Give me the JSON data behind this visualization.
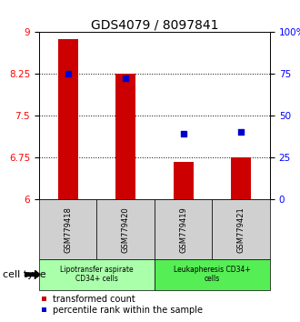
{
  "title": "GDS4079 / 8097841",
  "samples": [
    "GSM779418",
    "GSM779420",
    "GSM779419",
    "GSM779421"
  ],
  "red_values": [
    8.87,
    8.26,
    6.67,
    6.76
  ],
  "blue_values": [
    8.25,
    8.17,
    7.18,
    7.22
  ],
  "ylim_left": [
    6,
    9
  ],
  "ylim_right": [
    0,
    100
  ],
  "yticks_left": [
    6,
    6.75,
    7.5,
    8.25,
    9
  ],
  "yticks_right": [
    0,
    25,
    50,
    75,
    100
  ],
  "ytick_labels_right": [
    "0",
    "25",
    "50",
    "75",
    "100%"
  ],
  "dotted_lines": [
    6.75,
    7.5,
    8.25
  ],
  "groups": [
    {
      "label": "Lipotransfer aspirate\nCD34+ cells",
      "indices": [
        0,
        1
      ],
      "color": "#aaffaa"
    },
    {
      "label": "Leukapheresis CD34+\ncells",
      "indices": [
        2,
        3
      ],
      "color": "#55ee55"
    }
  ],
  "bar_color": "#cc0000",
  "dot_color": "#0000cc",
  "bar_width": 0.35,
  "cell_type_label": "cell type",
  "legend_red": "transformed count",
  "legend_blue": "percentile rank within the sample",
  "title_fontsize": 10,
  "tick_fontsize": 7.5,
  "sample_fontsize": 6.0,
  "group_fontsize": 5.5,
  "legend_fontsize": 7.0
}
